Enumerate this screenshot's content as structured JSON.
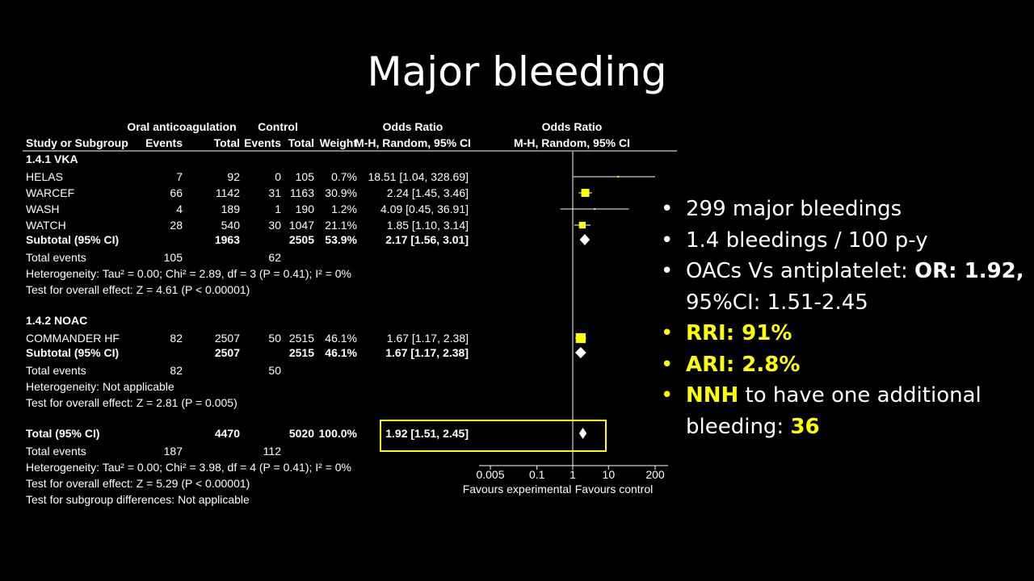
{
  "slide_title": "Major bleeding",
  "bullets": [
    {
      "text": "299 major bleedings",
      "bold": "",
      "rest": ""
    },
    {
      "text": "1.4 bleedings / 100 p-y",
      "bold": "",
      "rest": ""
    },
    {
      "text": "OACs Vs antiplatelet: ",
      "bold": "OR: 1.92,",
      "rest": " 95%CI: 1.51-2.45"
    },
    {
      "text": "",
      "bold": "RRI: 91%",
      "rest": ""
    },
    {
      "text": "",
      "bold": "ARI: 2.8%",
      "rest": ""
    },
    {
      "text": "",
      "bold": "NNH",
      "rest": " to have one additional bleeding: ",
      "bold2": "36"
    }
  ],
  "colors": {
    "accent": "#ffff00",
    "background": "#000000",
    "text": "#ffffff"
  },
  "chart_data": {
    "type": "table",
    "header_groups": {
      "experimental": "Oral anticoagulation",
      "control": "Control",
      "or_text": "Odds Ratio",
      "or_plot": "Odds Ratio"
    },
    "columns": [
      "Study or Subgroup",
      "Events",
      "Total",
      "Events",
      "Total",
      "Weight",
      "M-H, Random, 95% CI",
      "M-H, Random, 95% CI"
    ],
    "subgroups": [
      {
        "name": "1.4.1 VKA",
        "studies": [
          {
            "study": "HELAS",
            "e_events": "7",
            "e_total": "92",
            "c_events": "0",
            "c_total": "105",
            "weight": "0.7%",
            "ci_text": "18.51 [1.04, 328.69]",
            "or": 18.51,
            "lo": 1.04,
            "hi": 328.69
          },
          {
            "study": "WARCEF",
            "e_events": "66",
            "e_total": "1142",
            "c_events": "31",
            "c_total": "1163",
            "weight": "30.9%",
            "ci_text": "2.24 [1.45, 3.46]",
            "or": 2.24,
            "lo": 1.45,
            "hi": 3.46
          },
          {
            "study": "WASH",
            "e_events": "4",
            "e_total": "189",
            "c_events": "1",
            "c_total": "190",
            "weight": "1.2%",
            "ci_text": "4.09 [0.45, 36.91]",
            "or": 4.09,
            "lo": 0.45,
            "hi": 36.91
          },
          {
            "study": "WATCH",
            "e_events": "28",
            "e_total": "540",
            "c_events": "30",
            "c_total": "1047",
            "weight": "21.1%",
            "ci_text": "1.85 [1.10, 3.14]",
            "or": 1.85,
            "lo": 1.1,
            "hi": 3.14
          }
        ],
        "subtotal": {
          "label": "Subtotal (95% CI)",
          "e_total": "1963",
          "c_total": "2505",
          "weight": "53.9%",
          "ci_text": "2.17 [1.56, 3.01]",
          "or": 2.17,
          "lo": 1.56,
          "hi": 3.01
        },
        "total_events": {
          "label": "Total events",
          "e": "105",
          "c": "62"
        },
        "heterogeneity": "Heterogeneity: Tau² = 0.00; Chi² = 2.89, df = 3 (P = 0.41); I² = 0%",
        "overall": "Test for overall effect: Z = 4.61 (P < 0.00001)"
      },
      {
        "name": "1.4.2 NOAC",
        "studies": [
          {
            "study": "COMMANDER HF",
            "e_events": "82",
            "e_total": "2507",
            "c_events": "50",
            "c_total": "2515",
            "weight": "46.1%",
            "ci_text": "1.67 [1.17, 2.38]",
            "or": 1.67,
            "lo": 1.17,
            "hi": 2.38
          }
        ],
        "subtotal": {
          "label": "Subtotal (95% CI)",
          "e_total": "2507",
          "c_total": "2515",
          "weight": "46.1%",
          "ci_text": "1.67 [1.17, 2.38]",
          "or": 1.67,
          "lo": 1.17,
          "hi": 2.38
        },
        "total_events": {
          "label": "Total events",
          "e": "82",
          "c": "50"
        },
        "heterogeneity": "Heterogeneity: Not applicable",
        "overall": "Test for overall effect: Z = 2.81 (P = 0.005)"
      }
    ],
    "total": {
      "label": "Total (95% CI)",
      "e_total": "4470",
      "c_total": "5020",
      "weight": "100.0%",
      "ci_text": "1.92 [1.51, 2.45]",
      "or": 1.92,
      "lo": 1.51,
      "hi": 2.45
    },
    "total_events": {
      "label": "Total events",
      "e": "187",
      "c": "112"
    },
    "footer": [
      "Heterogeneity: Tau² = 0.00; Chi² = 3.98, df = 4 (P = 0.41); I² = 0%",
      "Test for overall effect: Z = 5.29 (P < 0.00001)",
      "Test for subgroup differences: Not applicable"
    ],
    "x_axis": {
      "scale": "log",
      "ticks": [
        0.005,
        0.1,
        1,
        10,
        200
      ],
      "tick_labels": [
        "0.005",
        "0.1",
        "1",
        "10",
        "200"
      ],
      "range": [
        0.005,
        200
      ]
    },
    "favours": {
      "left": "Favours experimental",
      "right": "Favours control"
    },
    "highlight": "total"
  }
}
